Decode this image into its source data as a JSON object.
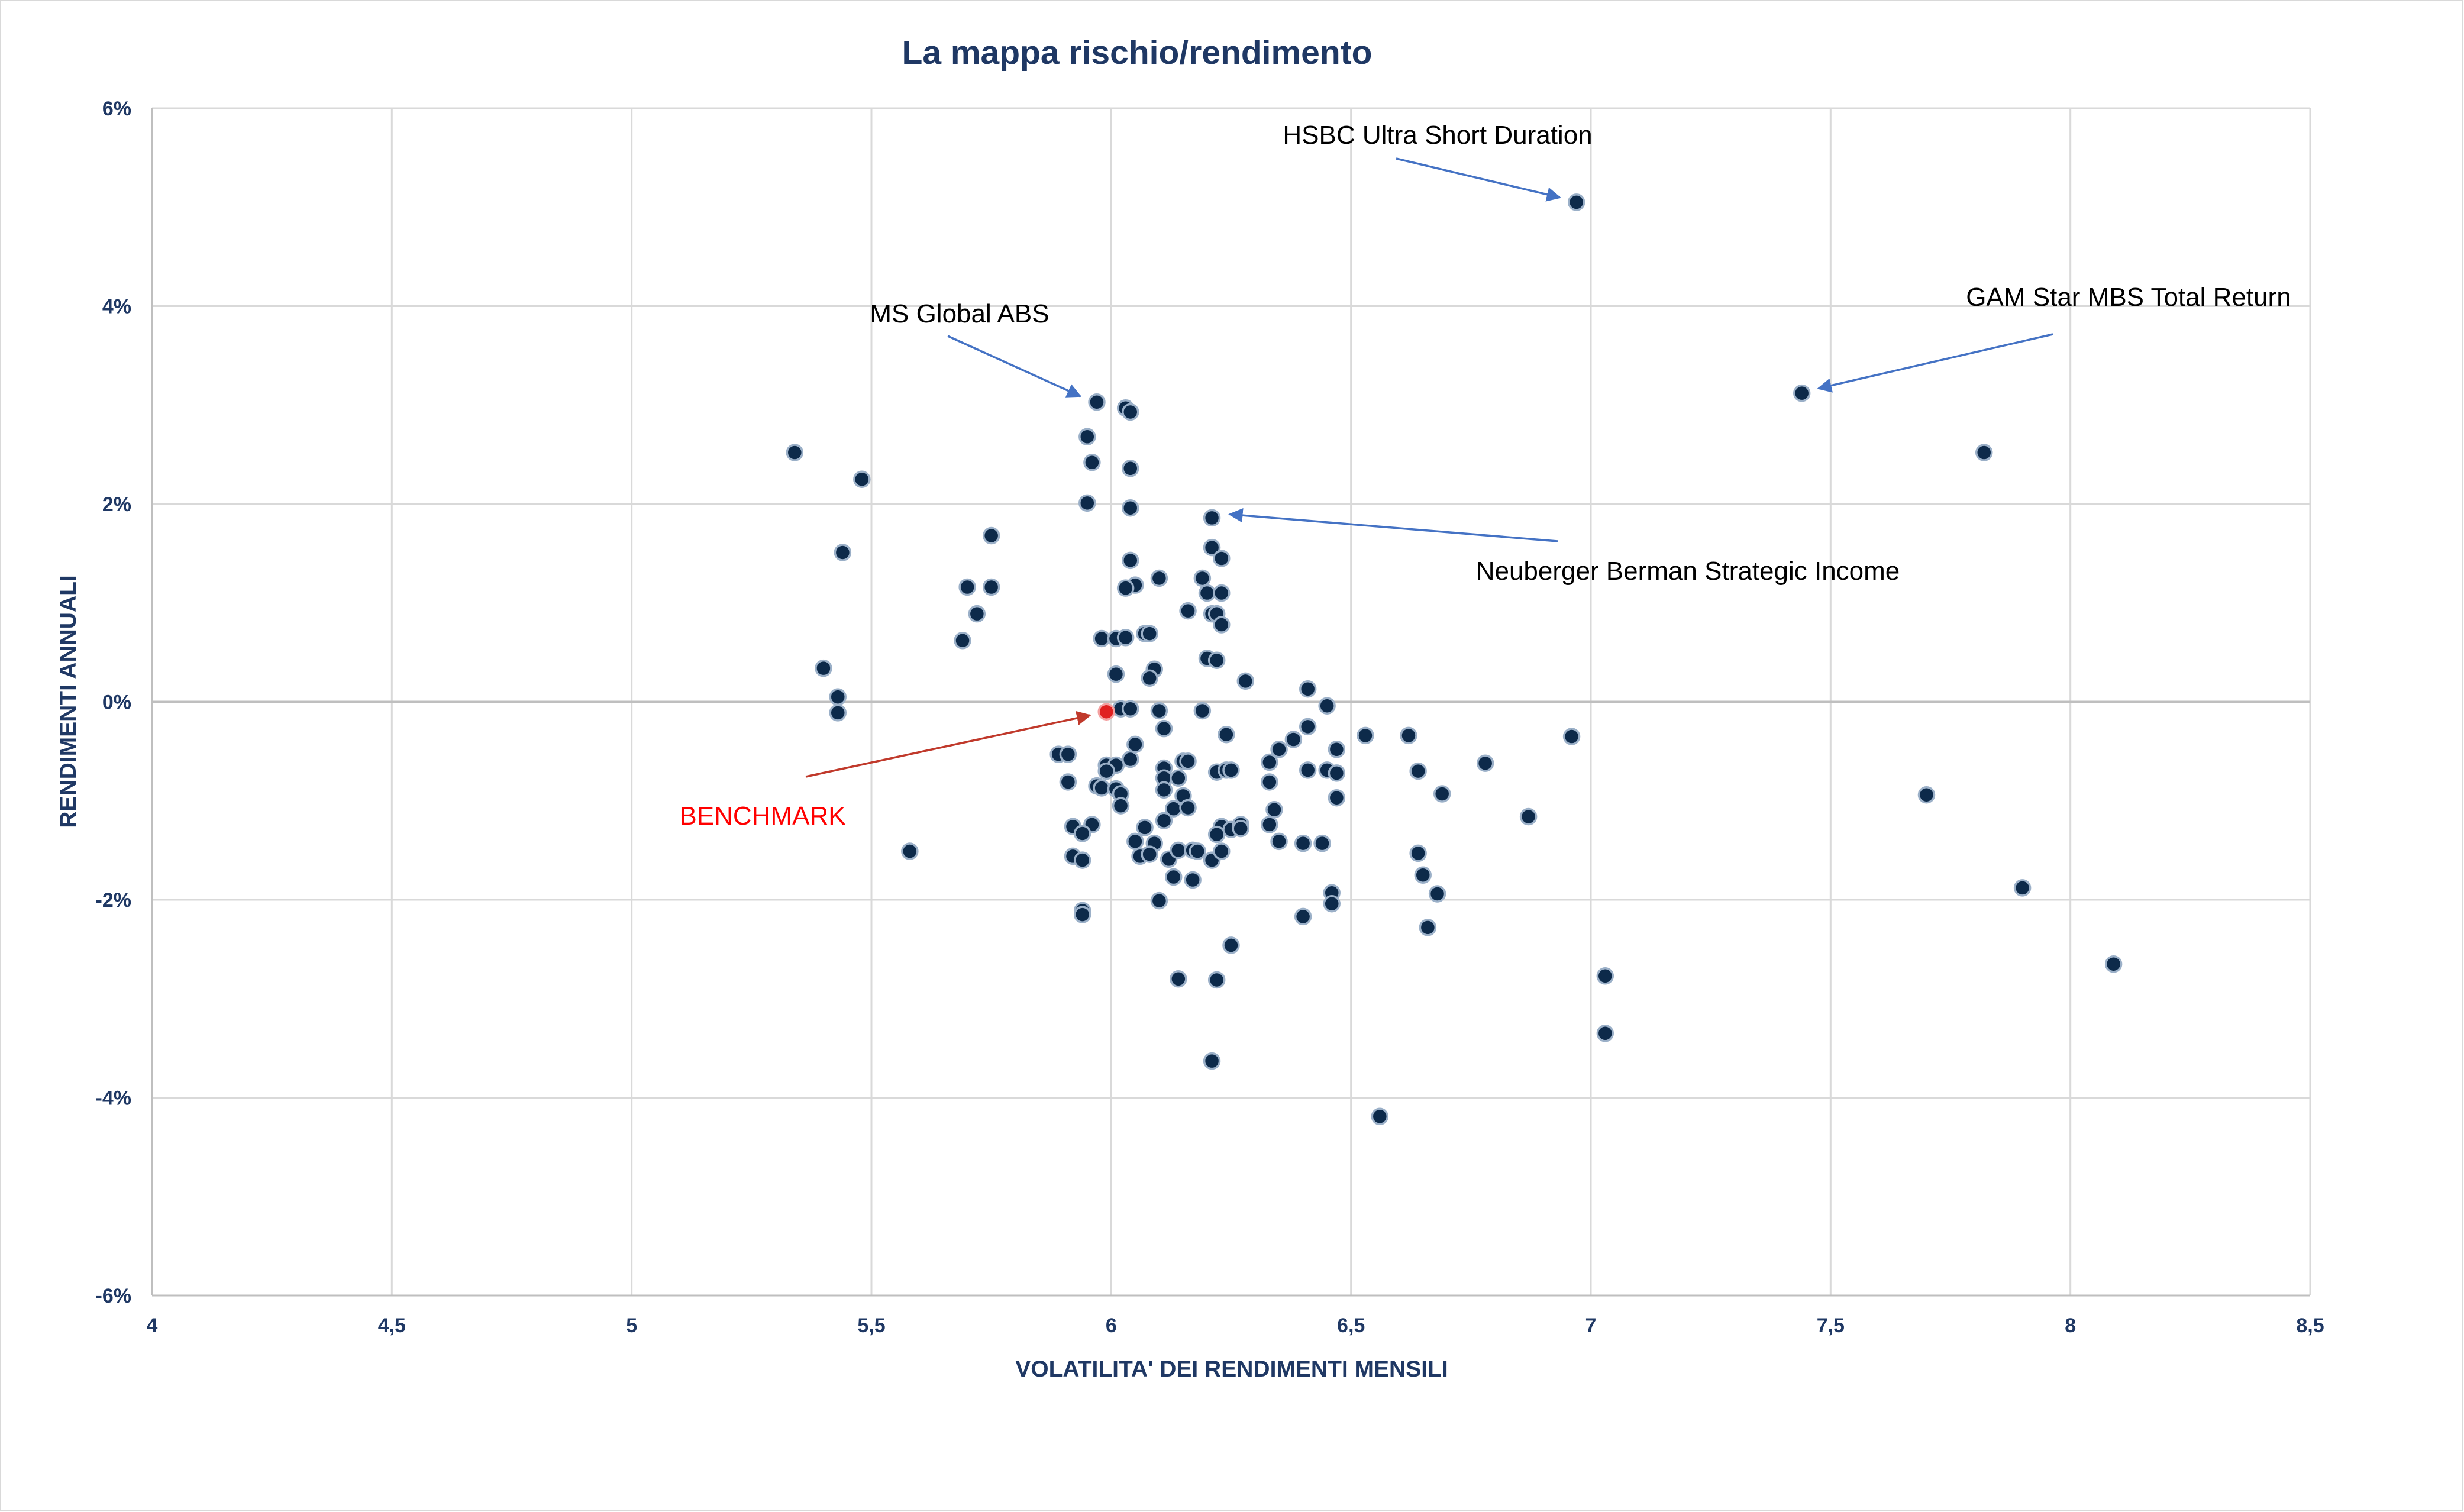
{
  "chart_data": {
    "type": "scatter",
    "title": "La mappa rischio/rendimento",
    "xlabel": "VOLATILITA' DEI RENDIMENTI MENSILI",
    "ylabel": "RENDIMENTI ANNUALI",
    "xlim": [
      4,
      8.5
    ],
    "ylim": [
      -6,
      6
    ],
    "x_ticks": [
      4,
      4.5,
      5,
      5.5,
      6,
      6.5,
      7,
      7.5,
      8,
      8.5
    ],
    "x_tick_labels": [
      "4",
      "4,5",
      "5",
      "5,5",
      "6",
      "6,5",
      "7",
      "7,5",
      "8",
      "8,5"
    ],
    "y_ticks": [
      6,
      4,
      2,
      0,
      -2,
      -4,
      -6
    ],
    "y_tick_labels": [
      "6%",
      "4%",
      "2%",
      "0%",
      "-2%",
      "-4%",
      "-6%"
    ],
    "grid": true,
    "colors": {
      "point": "#0d2a4a",
      "point_edge": "#9bb0c8",
      "benchmark": "#e02020",
      "arrow_blue": "#4472c4",
      "arrow_red": "#c0392b",
      "text_main": "#1f3864",
      "grid": "#d9d9d9"
    },
    "benchmark": {
      "label": "BENCHMARK",
      "x": 5.99,
      "y": -0.1
    },
    "annotations": [
      {
        "label": "HSBC Ultra Short Duration",
        "x": 6.97,
        "y": 5.05
      },
      {
        "label": "MS Global ABS",
        "x": 5.97,
        "y": 3.03
      },
      {
        "label": "GAM Star MBS Total Return",
        "x": 7.44,
        "y": 3.12
      },
      {
        "label": "Neuberger Berman Strategic Income",
        "x": 6.21,
        "y": 1.86
      }
    ],
    "points": [
      [
        6.97,
        5.05
      ],
      [
        7.44,
        3.12
      ],
      [
        7.82,
        2.52
      ],
      [
        5.34,
        2.52
      ],
      [
        5.48,
        2.25
      ],
      [
        5.44,
        1.51
      ],
      [
        5.4,
        0.34
      ],
      [
        5.43,
        0.05
      ],
      [
        5.43,
        -0.11
      ],
      [
        5.58,
        -1.51
      ],
      [
        5.97,
        3.03
      ],
      [
        6.03,
        2.97
      ],
      [
        6.04,
        2.93
      ],
      [
        5.95,
        2.68
      ],
      [
        5.96,
        2.42
      ],
      [
        6.04,
        2.36
      ],
      [
        5.95,
        2.01
      ],
      [
        6.04,
        1.96
      ],
      [
        5.75,
        1.68
      ],
      [
        5.7,
        1.16
      ],
      [
        5.75,
        1.16
      ],
      [
        5.72,
        0.89
      ],
      [
        5.69,
        0.62
      ],
      [
        6.21,
        1.86
      ],
      [
        6.21,
        1.56
      ],
      [
        6.23,
        1.45
      ],
      [
        6.04,
        1.43
      ],
      [
        6.1,
        1.25
      ],
      [
        6.19,
        1.25
      ],
      [
        6.05,
        1.18
      ],
      [
        6.03,
        1.15
      ],
      [
        6.2,
        1.1
      ],
      [
        6.23,
        1.1
      ],
      [
        6.16,
        0.92
      ],
      [
        6.21,
        0.89
      ],
      [
        6.22,
        0.89
      ],
      [
        6.23,
        0.78
      ],
      [
        6.07,
        0.69
      ],
      [
        6.08,
        0.69
      ],
      [
        5.98,
        0.64
      ],
      [
        6.01,
        0.64
      ],
      [
        6.03,
        0.65
      ],
      [
        6.2,
        0.44
      ],
      [
        6.22,
        0.42
      ],
      [
        6.09,
        0.33
      ],
      [
        6.08,
        0.24
      ],
      [
        6.01,
        0.28
      ],
      [
        6.28,
        0.21
      ],
      [
        6.41,
        0.13
      ],
      [
        6.45,
        -0.04
      ],
      [
        6.02,
        -0.07
      ],
      [
        6.04,
        -0.07
      ],
      [
        6.1,
        -0.09
      ],
      [
        6.19,
        -0.09
      ],
      [
        6.41,
        -0.25
      ],
      [
        6.11,
        -0.27
      ],
      [
        6.24,
        -0.33
      ],
      [
        6.38,
        -0.38
      ],
      [
        6.53,
        -0.34
      ],
      [
        6.62,
        -0.34
      ],
      [
        6.96,
        -0.35
      ],
      [
        6.05,
        -0.43
      ],
      [
        6.35,
        -0.48
      ],
      [
        6.47,
        -0.48
      ],
      [
        5.89,
        -0.53
      ],
      [
        5.91,
        -0.53
      ],
      [
        6.04,
        -0.58
      ],
      [
        6.15,
        -0.6
      ],
      [
        6.16,
        -0.6
      ],
      [
        6.33,
        -0.61
      ],
      [
        6.78,
        -0.62
      ],
      [
        5.99,
        -0.64
      ],
      [
        6.01,
        -0.64
      ],
      [
        5.99,
        -0.7
      ],
      [
        6.11,
        -0.67
      ],
      [
        6.22,
        -0.71
      ],
      [
        6.24,
        -0.69
      ],
      [
        6.25,
        -0.69
      ],
      [
        6.41,
        -0.69
      ],
      [
        6.45,
        -0.69
      ],
      [
        6.47,
        -0.72
      ],
      [
        6.64,
        -0.7
      ],
      [
        6.11,
        -0.77
      ],
      [
        6.14,
        -0.77
      ],
      [
        5.91,
        -0.81
      ],
      [
        5.97,
        -0.85
      ],
      [
        5.98,
        -0.87
      ],
      [
        6.01,
        -0.88
      ],
      [
        6.02,
        -0.93
      ],
      [
        6.11,
        -0.89
      ],
      [
        6.15,
        -0.95
      ],
      [
        6.33,
        -0.81
      ],
      [
        6.47,
        -0.97
      ],
      [
        6.69,
        -0.93
      ],
      [
        7.7,
        -0.94
      ],
      [
        6.02,
        -1.05
      ],
      [
        6.13,
        -1.08
      ],
      [
        6.16,
        -1.07
      ],
      [
        6.34,
        -1.09
      ],
      [
        6.87,
        -1.16
      ],
      [
        5.92,
        -1.26
      ],
      [
        5.96,
        -1.24
      ],
      [
        5.94,
        -1.33
      ],
      [
        6.11,
        -1.2
      ],
      [
        6.07,
        -1.27
      ],
      [
        6.23,
        -1.26
      ],
      [
        6.25,
        -1.29
      ],
      [
        6.27,
        -1.24
      ],
      [
        6.27,
        -1.28
      ],
      [
        6.33,
        -1.24
      ],
      [
        6.22,
        -1.34
      ],
      [
        6.05,
        -1.41
      ],
      [
        6.09,
        -1.43
      ],
      [
        6.35,
        -1.41
      ],
      [
        6.4,
        -1.43
      ],
      [
        6.44,
        -1.43
      ],
      [
        5.92,
        -1.56
      ],
      [
        5.94,
        -1.6
      ],
      [
        6.06,
        -1.56
      ],
      [
        6.08,
        -1.54
      ],
      [
        6.12,
        -1.59
      ],
      [
        6.14,
        -1.5
      ],
      [
        6.17,
        -1.5
      ],
      [
        6.18,
        -1.51
      ],
      [
        6.21,
        -1.6
      ],
      [
        6.23,
        -1.51
      ],
      [
        6.64,
        -1.53
      ],
      [
        6.13,
        -1.77
      ],
      [
        6.17,
        -1.8
      ],
      [
        6.65,
        -1.75
      ],
      [
        6.68,
        -1.94
      ],
      [
        6.46,
        -1.93
      ],
      [
        6.46,
        -2.04
      ],
      [
        6.1,
        -2.01
      ],
      [
        7.9,
        -1.88
      ],
      [
        5.94,
        -2.11
      ],
      [
        5.94,
        -2.15
      ],
      [
        6.4,
        -2.17
      ],
      [
        6.66,
        -2.28
      ],
      [
        6.25,
        -2.46
      ],
      [
        8.09,
        -2.65
      ],
      [
        6.14,
        -2.8
      ],
      [
        6.22,
        -2.81
      ],
      [
        7.03,
        -2.77
      ],
      [
        7.03,
        -3.35
      ],
      [
        6.21,
        -3.63
      ],
      [
        6.56,
        -4.19
      ]
    ]
  }
}
